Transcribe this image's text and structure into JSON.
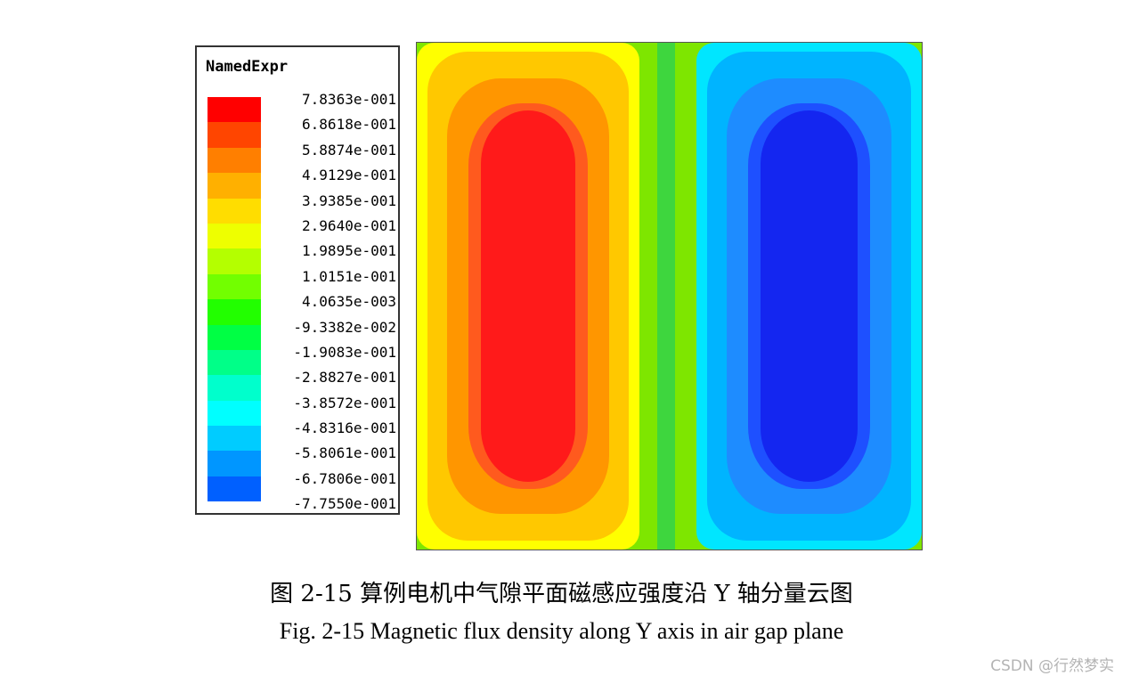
{
  "legend": {
    "title": "NamedExpr",
    "labels": [
      "7.8363e-001",
      "6.8618e-001",
      "5.8874e-001",
      "4.9129e-001",
      "3.9385e-001",
      "2.9640e-001",
      "1.9895e-001",
      "1.0151e-001",
      "4.0635e-003",
      "-9.3382e-002",
      "-1.9083e-001",
      "-2.8827e-001",
      "-3.8572e-001",
      "-4.8316e-001",
      "-5.8061e-001",
      "-6.7806e-001",
      "-7.7550e-001"
    ],
    "colors": [
      "#ff0000",
      "#ff4500",
      "#ff7f00",
      "#ffb000",
      "#ffdd00",
      "#eeff00",
      "#b4ff00",
      "#72ff00",
      "#22ff00",
      "#00ff44",
      "#00ff88",
      "#00ffcc",
      "#00ffff",
      "#00ccff",
      "#0096ff",
      "#0060ff",
      "#0020ff"
    ]
  },
  "plot": {
    "left_bands": [
      "#ffff00",
      "#ffc800",
      "#ff9600",
      "#ff5a1e",
      "#ff1a1a"
    ],
    "right_bands": [
      "#00e6ff",
      "#00b4ff",
      "#1e8cff",
      "#1e50ff",
      "#1426f0"
    ],
    "mid_color": "#7ee600",
    "center_color": "#3ed63e"
  },
  "caption": {
    "cn": "图 2-15 算例电机中气隙平面磁感应强度沿 Y 轴分量云图",
    "en": "Fig. 2-15 Magnetic flux density along Y axis in air gap plane"
  },
  "watermark": "CSDN @行然梦实"
}
